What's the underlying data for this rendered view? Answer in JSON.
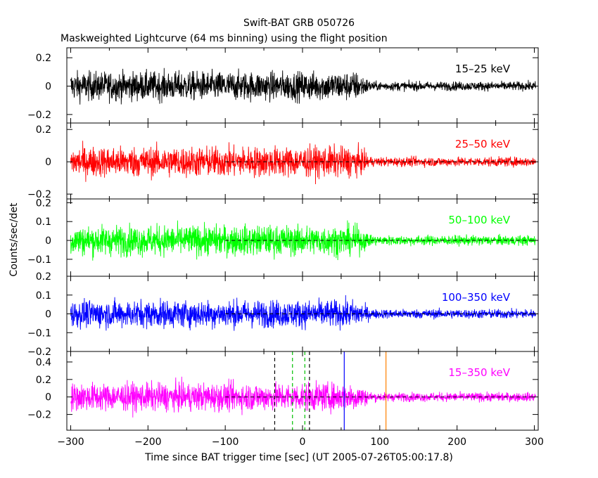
{
  "title": "Swift-BAT GRB 050726",
  "subtitle": "Maskweighted Lightcurve (64 ms binning) using the flight position",
  "ylabel": "Counts/sec/det",
  "xlabel": "Time since BAT trigger time [sec] (UT 2005-07-26T05:00:17.8)",
  "colors": {
    "frame": "#000000",
    "vline_black": "#000000",
    "vline_green": "#00c000",
    "vline_blue": "#0000ff",
    "vline_orange": "#ff8000"
  },
  "chart_data": {
    "type": "line",
    "xlim": [
      -305,
      305
    ],
    "xticks": [
      -300,
      -200,
      -100,
      0,
      100,
      200,
      300
    ],
    "xtick_labels": [
      "−300",
      "−200",
      "−100",
      "0",
      "100",
      "200",
      "300"
    ],
    "binning_sec": 0.064,
    "dashed_zero_line_x_range": [
      -100,
      300
    ],
    "panels": [
      {
        "name": "15–25 keV",
        "color": "#000000",
        "ylim": [
          -0.26,
          0.27
        ],
        "yticks": [
          -0.2,
          0,
          0.2
        ],
        "ytick_labels": [
          "−0.2",
          "0",
          "0.2"
        ],
        "noise_before_70s": 0.07,
        "noise_after_90s": 0.022,
        "show_zero_line": false
      },
      {
        "name": "25–50 keV",
        "color": "#ff0000",
        "ylim": [
          -0.23,
          0.24
        ],
        "yticks": [
          -0.2,
          0,
          0.2
        ],
        "ytick_labels": [
          "−0.2",
          "0",
          "0.2"
        ],
        "noise_before_70s": 0.065,
        "noise_after_90s": 0.02,
        "show_zero_line": true
      },
      {
        "name": "50–100 keV",
        "color": "#00ff00",
        "ylim": [
          -0.19,
          0.22
        ],
        "yticks": [
          -0.1,
          0,
          0.1,
          0.2
        ],
        "ytick_labels": [
          "−0.1",
          "0",
          "0.1",
          "0.2"
        ],
        "noise_before_70s": 0.055,
        "noise_after_90s": 0.018,
        "show_zero_line": true
      },
      {
        "name": "100–350 keV",
        "color": "#0000ff",
        "ylim": [
          -0.2,
          0.2
        ],
        "yticks": [
          -0.2,
          -0.1,
          0,
          0.1,
          0.2
        ],
        "ytick_labels": [
          "−0.2",
          "−0.1",
          "0",
          "0.1",
          "0.2"
        ],
        "noise_before_70s": 0.05,
        "noise_after_90s": 0.017,
        "show_zero_line": true
      },
      {
        "name": "15–350 keV",
        "color": "#ff00ff",
        "ylim": [
          -0.38,
          0.52
        ],
        "yticks": [
          -0.2,
          0,
          0.2,
          0.4
        ],
        "ytick_labels": [
          "−0.2",
          "0",
          "0.2",
          "0.4"
        ],
        "noise_before_70s": 0.11,
        "noise_after_90s": 0.035,
        "show_zero_line": true
      }
    ],
    "vertical_markers_bottom_panel": [
      {
        "x": -36,
        "style": "dashed",
        "color": "black"
      },
      {
        "x": -13,
        "style": "dashed",
        "color": "green"
      },
      {
        "x": 3,
        "style": "dashed",
        "color": "green"
      },
      {
        "x": 9,
        "style": "dashed",
        "color": "black"
      },
      {
        "x": 54,
        "style": "solid",
        "color": "blue"
      },
      {
        "x": 108,
        "style": "solid",
        "color": "orange"
      }
    ]
  }
}
